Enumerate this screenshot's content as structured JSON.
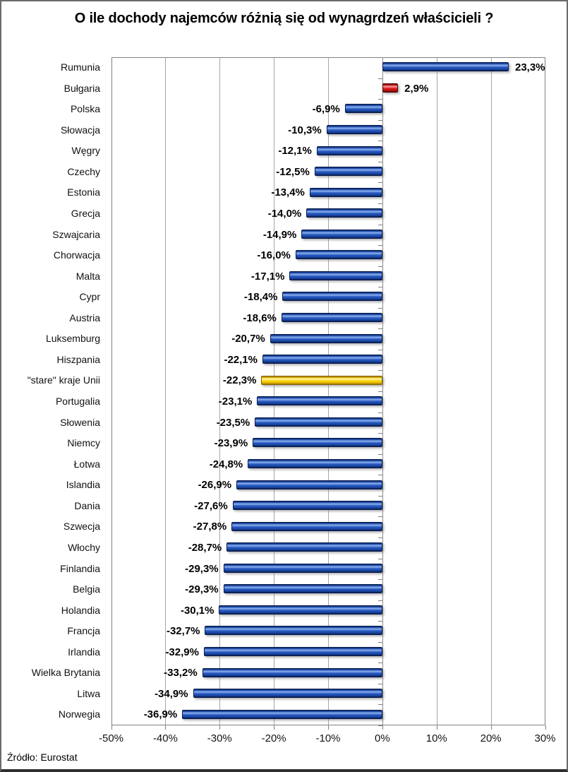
{
  "chart_data": {
    "type": "bar",
    "orientation": "horizontal",
    "title": "O ile dochody najemców różnią się od wynagrdzeń właścicieli ?",
    "source": "Źródło: Eurostat",
    "categories": [
      "Rumunia",
      "Bułgaria",
      "Polska",
      "Słowacja",
      "Węgry",
      "Czechy",
      "Estonia",
      "Grecja",
      "Szwajcaria",
      "Chorwacja",
      "Malta",
      "Cypr",
      "Austria",
      "Luksemburg",
      "Hiszpania",
      "\"stare\" kraje Unii",
      "Portugalia",
      "Słowenia",
      "Niemcy",
      "Łotwa",
      "Islandia",
      "Dania",
      "Szwecja",
      "Włochy",
      "Finlandia",
      "Belgia",
      "Holandia",
      "Francja",
      "Irlandia",
      "Wielka Brytania",
      "Litwa",
      "Norwegia"
    ],
    "values": [
      23.3,
      2.9,
      -6.9,
      -10.3,
      -12.1,
      -12.5,
      -13.4,
      -14.0,
      -14.9,
      -16.0,
      -17.1,
      -18.4,
      -18.6,
      -20.7,
      -22.1,
      -22.3,
      -23.1,
      -23.5,
      -23.9,
      -24.8,
      -26.9,
      -27.6,
      -27.8,
      -28.7,
      -29.3,
      -29.3,
      -30.1,
      -32.7,
      -32.9,
      -33.2,
      -34.9,
      -36.9
    ],
    "value_labels": [
      "23,3%",
      "2,9%",
      "-6,9%",
      "-10,3%",
      "-12,1%",
      "-12,5%",
      "-13,4%",
      "-14,0%",
      "-14,9%",
      "-16,0%",
      "-17,1%",
      "-18,4%",
      "-18,6%",
      "-20,7%",
      "-22,1%",
      "-22,3%",
      "-23,1%",
      "-23,5%",
      "-23,9%",
      "-24,8%",
      "-26,9%",
      "-27,6%",
      "-27,8%",
      "-28,7%",
      "-29,3%",
      "-29,3%",
      "-30,1%",
      "-32,7%",
      "-32,9%",
      "-33,2%",
      "-34,9%",
      "-36,9%"
    ],
    "bar_colors": [
      "blue",
      "red",
      "blue",
      "blue",
      "blue",
      "blue",
      "blue",
      "blue",
      "blue",
      "blue",
      "blue",
      "blue",
      "blue",
      "blue",
      "blue",
      "yellow",
      "blue",
      "blue",
      "blue",
      "blue",
      "blue",
      "blue",
      "blue",
      "blue",
      "blue",
      "blue",
      "blue",
      "blue",
      "blue",
      "blue",
      "blue",
      "blue"
    ],
    "x_ticks": [
      "-50%",
      "-40%",
      "-30%",
      "-20%",
      "-10%",
      "0%",
      "10%",
      "20%",
      "30%"
    ],
    "xlim": [
      -50,
      30
    ],
    "grid": "vertical",
    "legend": "none",
    "colors": {
      "bar_default": "#1e52b8",
      "bar_bulgaria": "#e01818",
      "bar_stare_kraje": "#ffd60a",
      "gridline": "#a6a6a6",
      "axis": "#808080"
    }
  }
}
